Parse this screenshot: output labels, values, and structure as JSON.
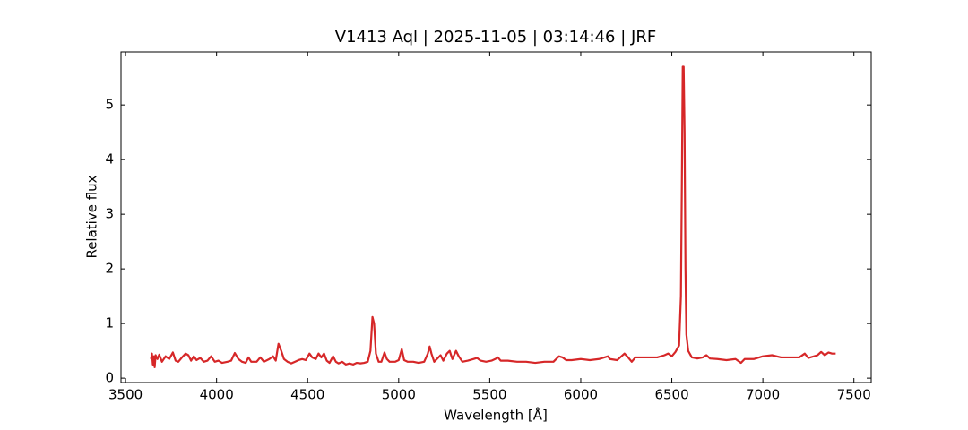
{
  "chart_data": {
    "type": "line",
    "title": "V1413 Aql | 2025-11-05 | 03:14:46 | JRF",
    "x_label": "Wavelength [Å]",
    "y_label": "Relative flux",
    "xlim": [
      3475,
      7595
    ],
    "ylim": [
      -0.08,
      5.97
    ],
    "xticks": [
      3500,
      4000,
      4500,
      5000,
      5500,
      6000,
      6500,
      7000,
      7500
    ],
    "yticks": [
      0,
      1,
      2,
      3,
      4,
      5
    ],
    "grid": false,
    "series": [
      {
        "color": "#d62728",
        "x": [
          3640,
          3645,
          3650,
          3655,
          3660,
          3665,
          3675,
          3685,
          3700,
          3720,
          3740,
          3760,
          3775,
          3790,
          3810,
          3830,
          3845,
          3860,
          3875,
          3890,
          3910,
          3930,
          3950,
          3970,
          3990,
          4010,
          4030,
          4060,
          4080,
          4100,
          4120,
          4140,
          4160,
          4175,
          4190,
          4220,
          4240,
          4260,
          4290,
          4310,
          4325,
          4340,
          4355,
          4370,
          4390,
          4410,
          4430,
          4450,
          4470,
          4490,
          4510,
          4525,
          4545,
          4560,
          4575,
          4590,
          4605,
          4620,
          4640,
          4655,
          4670,
          4690,
          4710,
          4730,
          4750,
          4770,
          4790,
          4810,
          4830,
          4845,
          4856,
          4865,
          4875,
          4890,
          4905,
          4922,
          4935,
          4950,
          4980,
          5000,
          5017,
          5030,
          5050,
          5080,
          5110,
          5140,
          5160,
          5170,
          5180,
          5195,
          5210,
          5230,
          5245,
          5265,
          5280,
          5295,
          5315,
          5330,
          5350,
          5380,
          5410,
          5430,
          5450,
          5480,
          5510,
          5530,
          5545,
          5560,
          5600,
          5650,
          5700,
          5750,
          5800,
          5850,
          5880,
          5900,
          5920,
          5950,
          6000,
          6050,
          6100,
          6150,
          6160,
          6200,
          6240,
          6260,
          6280,
          6300,
          6340,
          6380,
          6420,
          6460,
          6480,
          6500,
          6520,
          6540,
          6550,
          6555,
          6560,
          6565,
          6570,
          6575,
          6580,
          6590,
          6610,
          6640,
          6670,
          6690,
          6710,
          6750,
          6800,
          6850,
          6880,
          6900,
          6950,
          7000,
          7050,
          7100,
          7150,
          7200,
          7230,
          7250,
          7300,
          7320,
          7340,
          7360,
          7380,
          7400
        ],
        "values": [
          0.35,
          0.45,
          0.25,
          0.4,
          0.2,
          0.42,
          0.35,
          0.43,
          0.3,
          0.4,
          0.35,
          0.47,
          0.32,
          0.3,
          0.38,
          0.45,
          0.42,
          0.32,
          0.4,
          0.33,
          0.37,
          0.3,
          0.32,
          0.4,
          0.3,
          0.32,
          0.28,
          0.3,
          0.32,
          0.46,
          0.35,
          0.3,
          0.28,
          0.38,
          0.3,
          0.3,
          0.38,
          0.3,
          0.35,
          0.4,
          0.32,
          0.63,
          0.5,
          0.35,
          0.3,
          0.27,
          0.3,
          0.33,
          0.35,
          0.33,
          0.45,
          0.38,
          0.35,
          0.45,
          0.38,
          0.45,
          0.32,
          0.28,
          0.4,
          0.3,
          0.27,
          0.3,
          0.25,
          0.27,
          0.25,
          0.28,
          0.27,
          0.28,
          0.3,
          0.5,
          1.12,
          1.0,
          0.45,
          0.3,
          0.3,
          0.47,
          0.35,
          0.3,
          0.3,
          0.33,
          0.53,
          0.33,
          0.3,
          0.3,
          0.28,
          0.3,
          0.45,
          0.58,
          0.45,
          0.3,
          0.35,
          0.42,
          0.32,
          0.45,
          0.5,
          0.35,
          0.5,
          0.4,
          0.3,
          0.32,
          0.35,
          0.37,
          0.32,
          0.3,
          0.32,
          0.35,
          0.38,
          0.32,
          0.32,
          0.3,
          0.3,
          0.28,
          0.3,
          0.3,
          0.4,
          0.38,
          0.33,
          0.33,
          0.35,
          0.33,
          0.35,
          0.4,
          0.35,
          0.33,
          0.45,
          0.38,
          0.3,
          0.38,
          0.38,
          0.38,
          0.38,
          0.42,
          0.45,
          0.4,
          0.48,
          0.6,
          1.5,
          3.5,
          5.7,
          5.7,
          4.5,
          2.0,
          0.8,
          0.5,
          0.38,
          0.36,
          0.38,
          0.42,
          0.36,
          0.35,
          0.33,
          0.35,
          0.28,
          0.35,
          0.35,
          0.4,
          0.42,
          0.38,
          0.38,
          0.38,
          0.45,
          0.37,
          0.42,
          0.48,
          0.42,
          0.47,
          0.45,
          0.45
        ]
      }
    ]
  }
}
